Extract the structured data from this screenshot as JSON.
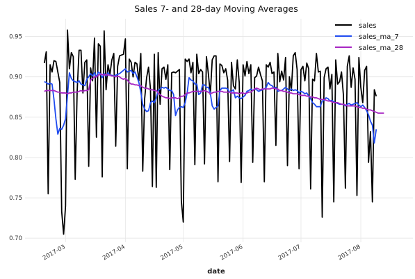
{
  "chart_data": {
    "type": "line",
    "title": "Sales 7- and 28-day Moving Averages",
    "xlabel": "date",
    "ylabel": "",
    "x_start": "2017-02-18",
    "x_end": "2017-08-14",
    "xlim": [
      "2017-02-08",
      "2017-08-28"
    ],
    "ylim": [
      0.695,
      0.972
    ],
    "yticks": [
      0.7,
      0.75,
      0.8,
      0.85,
      0.9,
      0.95
    ],
    "xticks": [
      "2017-03",
      "2017-04",
      "2017-05",
      "2017-06",
      "2017-07",
      "2017-08"
    ],
    "grid": true,
    "legend_position": "top-right",
    "series": [
      {
        "name": "sales",
        "color": "#000000",
        "values": [
          0.917,
          0.931,
          0.755,
          0.915,
          0.906,
          0.92,
          0.919,
          0.906,
          0.893,
          0.733,
          0.705,
          0.74,
          0.958,
          0.91,
          0.93,
          0.925,
          0.773,
          0.881,
          0.933,
          0.933,
          0.88,
          0.918,
          0.921,
          0.789,
          0.911,
          0.895,
          0.948,
          0.825,
          0.941,
          0.938,
          0.776,
          0.957,
          0.884,
          0.915,
          0.903,
          0.921,
          0.929,
          0.814,
          0.913,
          0.926,
          0.927,
          0.928,
          0.947,
          0.786,
          0.922,
          0.918,
          0.9,
          0.918,
          0.916,
          0.895,
          0.929,
          0.783,
          0.873,
          0.899,
          0.912,
          0.885,
          0.764,
          0.928,
          0.763,
          0.93,
          0.866,
          0.91,
          0.912,
          0.897,
          0.915,
          0.785,
          0.905,
          0.906,
          0.905,
          0.907,
          0.909,
          0.746,
          0.72,
          0.922,
          0.919,
          0.922,
          0.905,
          0.918,
          0.791,
          0.928,
          0.904,
          0.909,
          0.906,
          0.792,
          0.925,
          0.904,
          0.878,
          0.921,
          0.926,
          0.926,
          0.77,
          0.916,
          0.914,
          0.905,
          0.91,
          0.896,
          0.795,
          0.918,
          0.889,
          0.885,
          0.921,
          0.893,
          0.769,
          0.915,
          0.901,
          0.919,
          0.904,
          0.915,
          0.794,
          0.899,
          0.901,
          0.912,
          0.903,
          0.895,
          0.77,
          0.915,
          0.912,
          0.918,
          0.904,
          0.906,
          0.815,
          0.929,
          0.894,
          0.907,
          0.896,
          0.924,
          0.79,
          0.9,
          0.883,
          0.926,
          0.93,
          0.909,
          0.786,
          0.909,
          0.913,
          0.895,
          0.917,
          0.91,
          0.761,
          0.897,
          0.895,
          0.929,
          0.906,
          0.907,
          0.726,
          0.899,
          0.91,
          0.912,
          0.885,
          0.903,
          0.745,
          0.921,
          0.891,
          0.894,
          0.906,
          0.877,
          0.762,
          0.913,
          0.926,
          0.887,
          0.911,
          0.897,
          0.753,
          0.924,
          0.887,
          0.868,
          0.908,
          0.913,
          0.794,
          0.832,
          0.745,
          0.884,
          0.876
        ]
      },
      {
        "name": "sales_ma_7",
        "color": "#1f4bf0",
        "values": [
          0.894,
          0.893,
          0.891,
          0.892,
          0.891,
          0.872,
          0.848,
          0.829,
          0.836,
          0.835,
          0.84,
          0.848,
          0.877,
          0.905,
          0.898,
          0.895,
          0.894,
          0.893,
          0.895,
          0.891,
          0.89,
          0.889,
          0.897,
          0.9,
          0.904,
          0.901,
          0.905,
          0.9,
          0.906,
          0.904,
          0.899,
          0.904,
          0.901,
          0.905,
          0.902,
          0.902,
          0.901,
          0.902,
          0.903,
          0.904,
          0.906,
          0.908,
          0.91,
          0.906,
          0.907,
          0.908,
          0.904,
          0.906,
          0.9,
          0.893,
          0.881,
          0.866,
          0.86,
          0.857,
          0.858,
          0.868,
          0.87,
          0.868,
          0.874,
          0.883,
          0.885,
          0.887,
          0.886,
          0.887,
          0.885,
          0.883,
          0.883,
          0.878,
          0.852,
          0.859,
          0.862,
          0.863,
          0.862,
          0.868,
          0.88,
          0.899,
          0.896,
          0.895,
          0.891,
          0.891,
          0.878,
          0.88,
          0.89,
          0.89,
          0.887,
          0.887,
          0.88,
          0.864,
          0.86,
          0.862,
          0.864,
          0.883,
          0.886,
          0.886,
          0.886,
          0.885,
          0.881,
          0.882,
          0.884,
          0.874,
          0.876,
          0.874,
          0.873,
          0.875,
          0.877,
          0.882,
          0.883,
          0.885,
          0.883,
          0.885,
          0.884,
          0.882,
          0.883,
          0.884,
          0.885,
          0.887,
          0.893,
          0.89,
          0.889,
          0.886,
          0.887,
          0.882,
          0.883,
          0.883,
          0.885,
          0.887,
          0.885,
          0.883,
          0.885,
          0.883,
          0.884,
          0.883,
          0.88,
          0.882,
          0.881,
          0.879,
          0.88,
          0.876,
          0.873,
          0.868,
          0.866,
          0.863,
          0.863,
          0.863,
          0.87,
          0.871,
          0.874,
          0.873,
          0.87,
          0.871,
          0.869,
          0.868,
          0.867,
          0.866,
          0.866,
          0.866,
          0.864,
          0.866,
          0.867,
          0.865,
          0.866,
          0.867,
          0.868,
          0.865,
          0.863,
          0.865,
          0.862,
          0.858,
          0.853,
          0.845,
          0.84,
          0.818,
          0.835
        ]
      },
      {
        "name": "sales_ma_28",
        "color": "#a726c3",
        "values": [
          0.882,
          0.883,
          0.883,
          0.883,
          0.883,
          0.883,
          0.882,
          0.881,
          0.881,
          0.88,
          0.88,
          0.88,
          0.879,
          0.88,
          0.88,
          0.881,
          0.881,
          0.881,
          0.882,
          0.883,
          0.882,
          0.883,
          0.883,
          0.884,
          0.896,
          0.898,
          0.9,
          0.9,
          0.902,
          0.903,
          0.903,
          0.902,
          0.903,
          0.902,
          0.902,
          0.901,
          0.901,
          0.9,
          0.901,
          0.9,
          0.898,
          0.897,
          0.898,
          0.896,
          0.893,
          0.891,
          0.891,
          0.89,
          0.89,
          0.889,
          0.889,
          0.887,
          0.886,
          0.886,
          0.885,
          0.884,
          0.884,
          0.883,
          0.883,
          0.88,
          0.878,
          0.876,
          0.875,
          0.874,
          0.874,
          0.873,
          0.874,
          0.874,
          0.874,
          0.873,
          0.874,
          0.876,
          0.876,
          0.878,
          0.88,
          0.88,
          0.881,
          0.882,
          0.882,
          0.882,
          0.882,
          0.882,
          0.882,
          0.883,
          0.882,
          0.881,
          0.879,
          0.88,
          0.881,
          0.881,
          0.882,
          0.882,
          0.882,
          0.881,
          0.881,
          0.881,
          0.881,
          0.88,
          0.88,
          0.88,
          0.88,
          0.879,
          0.88,
          0.88,
          0.879,
          0.88,
          0.881,
          0.881,
          0.883,
          0.885,
          0.886,
          0.885,
          0.884,
          0.885,
          0.885,
          0.885,
          0.885,
          0.885,
          0.886,
          0.886,
          0.885,
          0.885,
          0.883,
          0.883,
          0.882,
          0.882,
          0.881,
          0.88,
          0.88,
          0.879,
          0.879,
          0.879,
          0.878,
          0.877,
          0.877,
          0.877,
          0.876,
          0.876,
          0.875,
          0.875,
          0.874,
          0.874,
          0.873,
          0.872,
          0.872,
          0.872,
          0.871,
          0.87,
          0.87,
          0.869,
          0.868,
          0.868,
          0.868,
          0.867,
          0.866,
          0.866,
          0.865,
          0.864,
          0.864,
          0.864,
          0.864,
          0.864,
          0.863,
          0.862,
          0.862,
          0.861,
          0.861,
          0.86,
          0.859,
          0.859,
          0.858,
          0.857,
          0.856,
          0.855,
          0.855,
          0.855,
          0.855
        ]
      }
    ]
  }
}
